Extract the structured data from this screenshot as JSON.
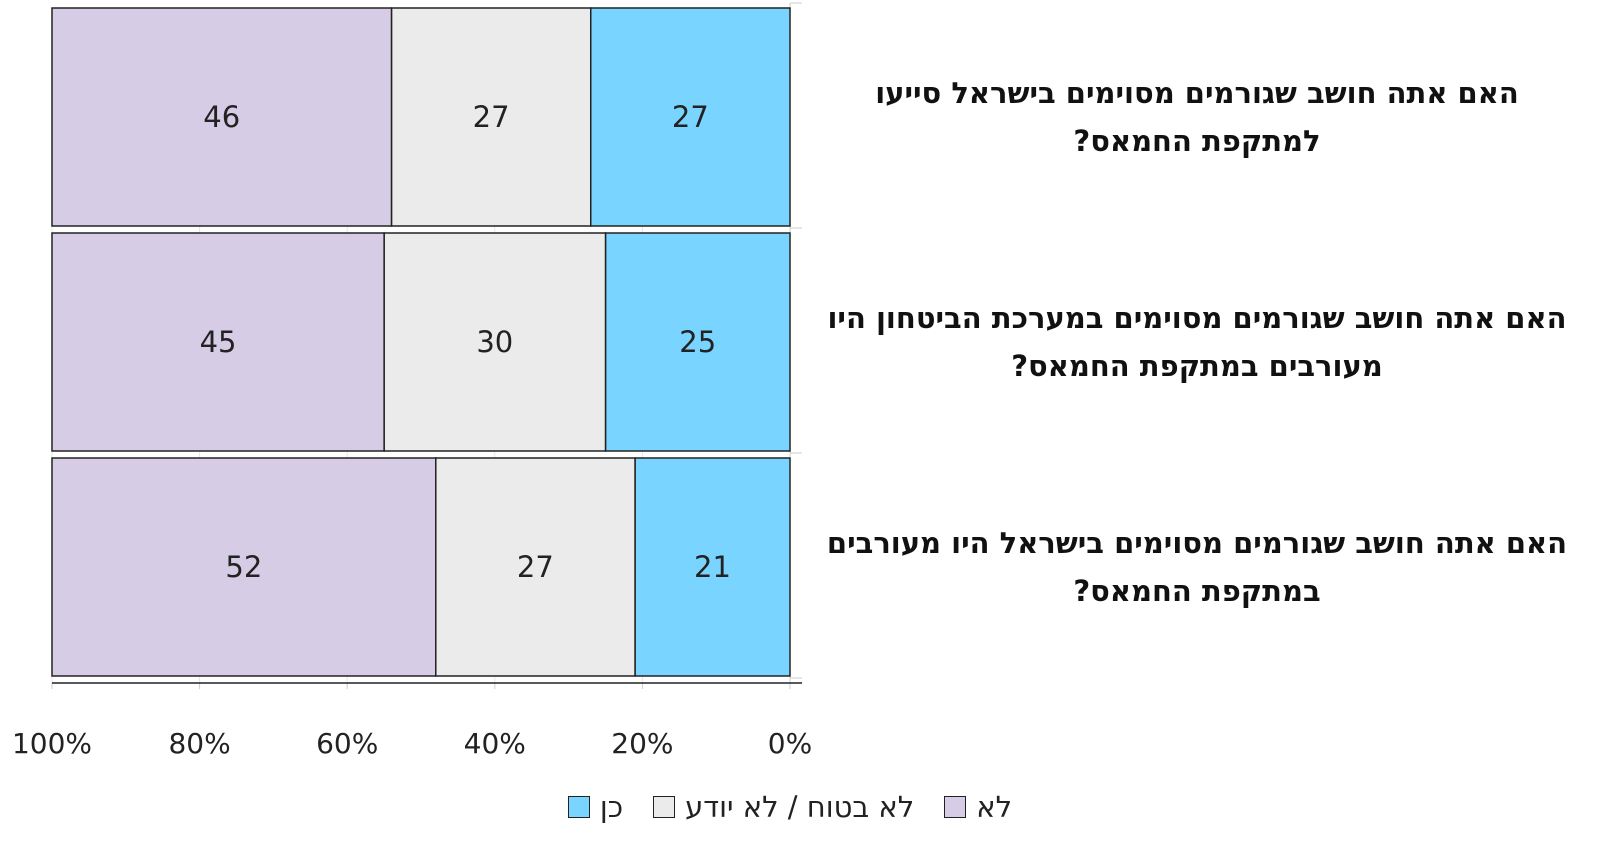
{
  "chart_data": {
    "type": "stacked-bar-horizontal",
    "categories": [
      "האם אתה חושב שגורמים מסוימים בישראל סייעו למתקפת החמאס?",
      "האם אתה חושב שגורמים מסוימים במערכת הביטחון היו מעורבים במתקפת החמאס?",
      "האם אתה חושב שגורמים מסוימים בישראל היו מעורבים במתקפת החמאס?"
    ],
    "series": [
      {
        "name": "כן",
        "color": "#79d5ff",
        "values": [
          27,
          25,
          21
        ]
      },
      {
        "name": "לא בטוח / לא יודע",
        "color": "#ebebeb",
        "values": [
          27,
          30,
          27
        ]
      },
      {
        "name": "לא",
        "color": "#d6cce6",
        "values": [
          46,
          45,
          52
        ]
      }
    ],
    "xlim": [
      0,
      100
    ],
    "xticks": [
      {
        "value": 100,
        "label": "100%"
      },
      {
        "value": 80,
        "label": "80%"
      },
      {
        "value": 60,
        "label": "60%"
      },
      {
        "value": 40,
        "label": "40%"
      },
      {
        "value": 20,
        "label": "20%"
      },
      {
        "value": 0,
        "label": "0%"
      }
    ],
    "x_inverted": true,
    "grid": true,
    "legend": "bottom"
  }
}
